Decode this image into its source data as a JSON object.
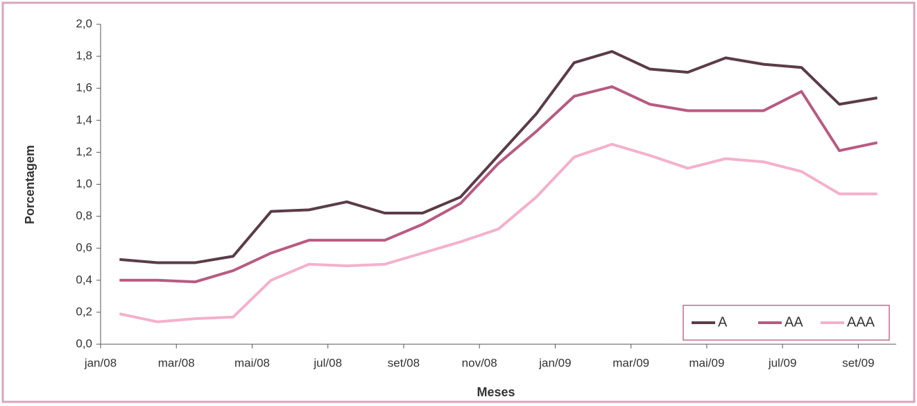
{
  "chart_data": {
    "type": "line",
    "x_label": "Meses",
    "y_label": "Porcentagem",
    "categories": [
      "jan/08",
      null,
      "mar/08",
      null,
      "mai/08",
      null,
      "jul/08",
      null,
      "set/08",
      null,
      "nov/08",
      null,
      "jan/09",
      null,
      "mar/09",
      null,
      "mai/09",
      null,
      "jul/09",
      null,
      "set/09"
    ],
    "series": [
      {
        "name": "A",
        "color": "#5a3c48",
        "values": [
          0.53,
          0.51,
          0.51,
          0.55,
          0.83,
          0.84,
          0.89,
          0.82,
          0.82,
          0.92,
          1.18,
          1.44,
          1.76,
          1.83,
          1.72,
          1.7,
          1.79,
          1.75,
          1.73,
          1.5,
          1.54
        ]
      },
      {
        "name": "AA",
        "color": "#b85a82",
        "values": [
          0.4,
          0.4,
          0.39,
          0.46,
          0.57,
          0.65,
          0.65,
          0.65,
          0.75,
          0.88,
          1.13,
          1.33,
          1.55,
          1.61,
          1.5,
          1.46,
          1.46,
          1.46,
          1.58,
          1.21,
          1.26
        ]
      },
      {
        "name": "AAA",
        "color": "#f4b0cc",
        "values": [
          0.19,
          0.14,
          0.16,
          0.17,
          0.4,
          0.5,
          0.49,
          0.5,
          0.57,
          0.64,
          0.72,
          0.92,
          1.17,
          1.25,
          1.18,
          1.1,
          1.16,
          1.14,
          1.08,
          0.94,
          0.94
        ]
      }
    ],
    "ylim": [
      0,
      2
    ],
    "yticks": [
      {
        "value": 0,
        "label": "0,0"
      },
      {
        "value": 0.2,
        "label": "0,2"
      },
      {
        "value": 0.4,
        "label": "0,4"
      },
      {
        "value": 0.6,
        "label": "0,6"
      },
      {
        "value": 0.8,
        "label": "0,8"
      },
      {
        "value": 1.0,
        "label": "1,0"
      },
      {
        "value": 1.2,
        "label": "1,2"
      },
      {
        "value": 1.4,
        "label": "1,4"
      },
      {
        "value": 1.6,
        "label": "1,6"
      },
      {
        "value": 1.8,
        "label": "1,8"
      },
      {
        "value": 2.0,
        "label": "2,0"
      }
    ],
    "legend": "lower right"
  }
}
